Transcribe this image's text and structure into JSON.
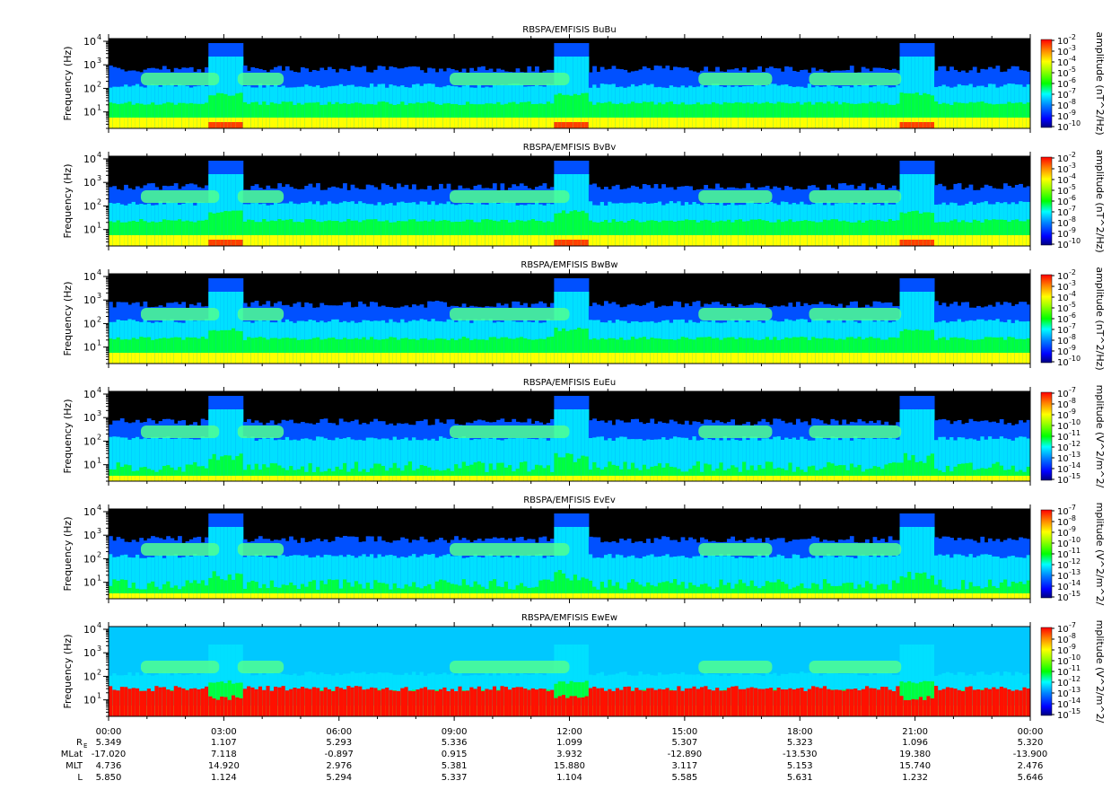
{
  "chart_data": [
    {
      "type": "heatmap",
      "title": "RBSPA/EMFISIS  BuBu",
      "ylabel": "Frequency (Hz)",
      "y_scale": "log",
      "ylim": [
        2,
        13000
      ],
      "yticks": [
        "10",
        "10",
        "10",
        "10"
      ],
      "ytick_exps": [
        "1",
        "2",
        "3",
        "4"
      ],
      "colorbar_label": "amplitude (nT^2/Hz)",
      "colorbar_ticks_base": "10",
      "colorbar_ticks_exp": [
        "-2",
        "-3",
        "-4",
        "-5",
        "-6",
        "-7",
        "-8",
        "-9",
        "-10"
      ],
      "colorbar_range": [
        -10,
        -2
      ],
      "variant": "b"
    },
    {
      "type": "heatmap",
      "title": "RBSPA/EMFISIS  BvBv",
      "ylabel": "Frequency (Hz)",
      "y_scale": "log",
      "ylim": [
        2,
        13000
      ],
      "yticks": [
        "10",
        "10",
        "10",
        "10"
      ],
      "ytick_exps": [
        "1",
        "2",
        "3",
        "4"
      ],
      "colorbar_label": "amplitude (nT^2/Hz)",
      "colorbar_ticks_base": "10",
      "colorbar_ticks_exp": [
        "-2",
        "-3",
        "-4",
        "-5",
        "-6",
        "-7",
        "-8",
        "-9",
        "-10"
      ],
      "colorbar_range": [
        -10,
        -2
      ],
      "variant": "b"
    },
    {
      "type": "heatmap",
      "title": "RBSPA/EMFISIS  BwBw",
      "ylabel": "Frequency (Hz)",
      "y_scale": "log",
      "ylim": [
        2,
        13000
      ],
      "yticks": [
        "10",
        "10",
        "10",
        "10"
      ],
      "ytick_exps": [
        "1",
        "2",
        "3",
        "4"
      ],
      "colorbar_label": "amplitude (nT^2/Hz)",
      "colorbar_ticks_base": "10",
      "colorbar_ticks_exp": [
        "-2",
        "-3",
        "-4",
        "-5",
        "-6",
        "-7",
        "-8",
        "-9",
        "-10"
      ],
      "colorbar_range": [
        -10,
        -2
      ],
      "variant": "bw"
    },
    {
      "type": "heatmap",
      "title": "RBSPA/EMFISIS  EuEu",
      "ylabel": "Frequency (Hz)",
      "y_scale": "log",
      "ylim": [
        2,
        13000
      ],
      "yticks": [
        "10",
        "10",
        "10",
        "10"
      ],
      "ytick_exps": [
        "1",
        "2",
        "3",
        "4"
      ],
      "colorbar_label": "mplitude (V^2/m^2/",
      "colorbar_ticks_base": "10",
      "colorbar_ticks_exp": [
        "-7",
        "-8",
        "-9",
        "-10",
        "-11",
        "-12",
        "-13",
        "-14",
        "-15"
      ],
      "colorbar_range": [
        -15,
        -7
      ],
      "variant": "e"
    },
    {
      "type": "heatmap",
      "title": "RBSPA/EMFISIS  EvEv",
      "ylabel": "Frequency (Hz)",
      "y_scale": "log",
      "ylim": [
        2,
        13000
      ],
      "yticks": [
        "10",
        "10",
        "10",
        "10"
      ],
      "ytick_exps": [
        "1",
        "2",
        "3",
        "4"
      ],
      "colorbar_label": "mplitude (V^2/m^2/",
      "colorbar_ticks_base": "10",
      "colorbar_ticks_exp": [
        "-7",
        "-8",
        "-9",
        "-10",
        "-11",
        "-12",
        "-13",
        "-14",
        "-15"
      ],
      "colorbar_range": [
        -15,
        -7
      ],
      "variant": "e"
    },
    {
      "type": "heatmap",
      "title": "RBSPA/EMFISIS  EwEw",
      "ylabel": "Frequency (Hz)",
      "y_scale": "log",
      "ylim": [
        2,
        13000
      ],
      "yticks": [
        "10",
        "10",
        "10",
        "10"
      ],
      "ytick_exps": [
        "1",
        "2",
        "3",
        "4"
      ],
      "colorbar_label": "mplitude (V^2/m^2/",
      "colorbar_ticks_base": "10",
      "colorbar_ticks_exp": [
        "-7",
        "-8",
        "-9",
        "-10",
        "-11",
        "-12",
        "-13",
        "-14",
        "-15"
      ],
      "colorbar_range": [
        -15,
        -7
      ],
      "variant": "ew"
    }
  ],
  "time_axis": {
    "labels": [
      "00:00",
      "03:00",
      "06:00",
      "09:00",
      "12:00",
      "15:00",
      "18:00",
      "21:00",
      "00:00"
    ],
    "rows": [
      {
        "label": "R",
        "sub": "E",
        "values": [
          "5.349",
          "1.107",
          "5.293",
          "5.336",
          "1.099",
          "5.307",
          "5.323",
          "1.096",
          "5.320"
        ]
      },
      {
        "label": "MLat",
        "sub": "",
        "values": [
          "-17.020",
          "7.118",
          "-0.897",
          "0.915",
          "3.932",
          "-12.890",
          "-13.530",
          "19.380",
          "-13.900"
        ]
      },
      {
        "label": "MLT",
        "sub": "",
        "values": [
          "4.736",
          "14.920",
          "2.976",
          "5.381",
          "15.880",
          "3.117",
          "5.153",
          "15.740",
          "2.476"
        ]
      },
      {
        "label": "L",
        "sub": "",
        "values": [
          "5.850",
          "1.124",
          "5.294",
          "5.337",
          "1.104",
          "5.585",
          "5.631",
          "1.232",
          "5.646"
        ]
      }
    ]
  },
  "colors": {
    "background": "#000000",
    "axis": "#000000",
    "text": "#000000"
  }
}
